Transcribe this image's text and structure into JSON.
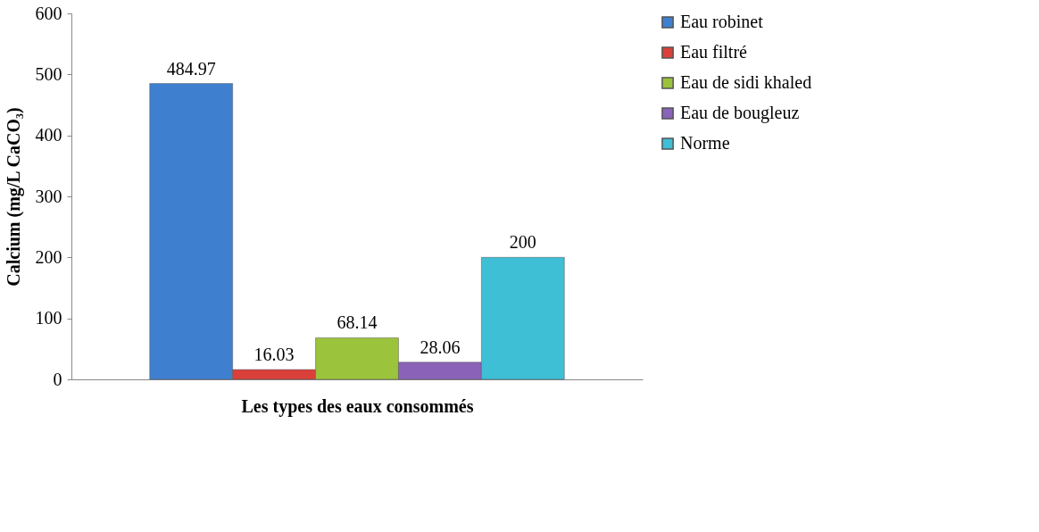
{
  "chart_data": {
    "type": "bar",
    "xlabel": "Les types des eaux consommés",
    "ylabel": "Calcium (mg/L CaCO₃)",
    "categories": [
      null
    ],
    "series": [
      {
        "name": "Eau robinet",
        "color": "#3f7fd0",
        "values": [
          484.97
        ]
      },
      {
        "name": "Eau filtré",
        "color": "#d9403a",
        "values": [
          16.03
        ]
      },
      {
        "name": "Eau de sidi khaled",
        "color": "#9bc33c",
        "values": [
          68.14
        ]
      },
      {
        "name": "Eau  de bougleuz",
        "color": "#8a63b8",
        "values": [
          28.06
        ]
      },
      {
        "name": "Norme",
        "color": "#3ebfd6",
        "values": [
          200
        ]
      }
    ],
    "ylim": [
      0,
      600
    ],
    "yticks": [
      0,
      100,
      200,
      300,
      400,
      500,
      600
    ],
    "data_labels": true,
    "grid": false,
    "legend": "right",
    "tick_labels": "y"
  }
}
